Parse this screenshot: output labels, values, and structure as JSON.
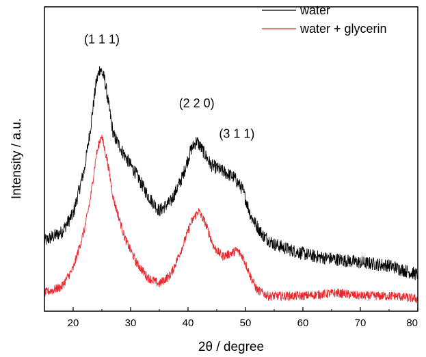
{
  "chart_data": {
    "type": "line",
    "xlabel": "2θ / degree",
    "ylabel": "Intensity / a.u.",
    "xlim": [
      15,
      80
    ],
    "ylim": [
      0,
      100
    ],
    "x_ticks": [
      "20",
      "30",
      "40",
      "50",
      "60",
      "70",
      "80"
    ],
    "y_ticks_labeled": false,
    "grid": false,
    "legend_position": "top-right",
    "series": [
      {
        "name": "water",
        "color": "#000000",
        "x": [
          15,
          18,
          20,
          22,
          23,
          24,
          24.7,
          25.5,
          27,
          29,
          31,
          33,
          35,
          37,
          39,
          40.5,
          41.5,
          42.5,
          44,
          46,
          48,
          49.5,
          51,
          53,
          55,
          58,
          62,
          66,
          70,
          75,
          80
        ],
        "y": [
          23,
          26,
          32,
          47,
          60,
          75,
          80,
          76,
          58,
          51,
          45,
          38,
          33,
          36,
          44,
          53,
          56,
          53,
          48,
          46,
          44,
          40,
          31,
          25,
          22,
          20,
          18,
          17,
          16,
          15,
          12
        ]
      },
      {
        "name": "water + glycerin",
        "color": "#e8262b",
        "x": [
          15,
          18,
          20,
          22,
          23,
          24,
          24.9,
          26,
          27,
          29,
          31,
          33,
          35,
          37,
          39,
          40.5,
          41.8,
          43,
          44.5,
          46,
          47.5,
          48.5,
          49.5,
          51,
          52,
          54,
          60,
          66,
          70,
          76,
          80
        ],
        "y": [
          6,
          8,
          14,
          27,
          37,
          51,
          58,
          49,
          37,
          24,
          16,
          11,
          9,
          12,
          21,
          29,
          33,
          29,
          21,
          18,
          19,
          20,
          18,
          11,
          7,
          5,
          5,
          6,
          5,
          5,
          4
        ]
      }
    ],
    "annotations": [
      {
        "text": "(1 1 1)",
        "x": 25,
        "y": 88
      },
      {
        "text": "(2 2 0)",
        "x": 41.5,
        "y": 67
      },
      {
        "text": "(3 1 1)",
        "x": 48.5,
        "y": 57
      }
    ]
  }
}
